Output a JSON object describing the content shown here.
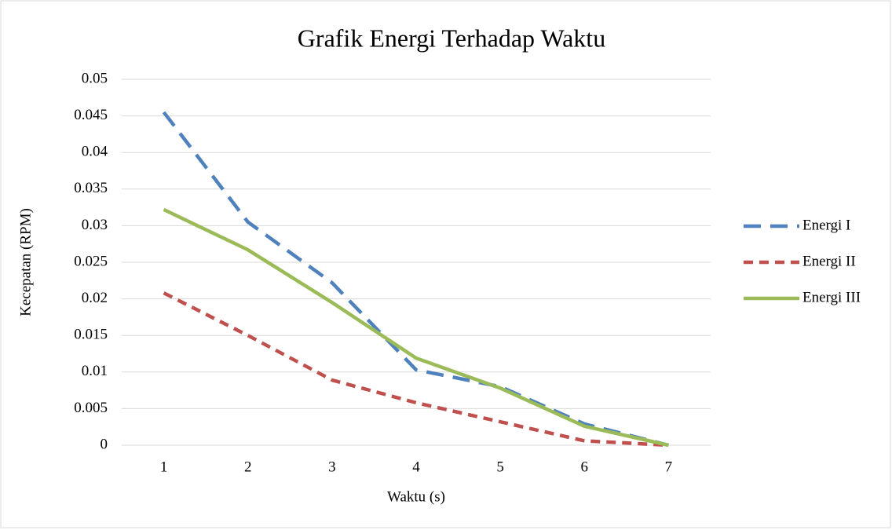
{
  "chart_data": {
    "type": "line",
    "title": "Grafik Energi Terhadap Waktu",
    "x_label": "Waktu (s)",
    "y_label": "Kecepatan (RPM)",
    "categories": [
      "1",
      "2",
      "3",
      "4",
      "5",
      "6",
      "7"
    ],
    "series": [
      {
        "name": "Energi I",
        "color": "#4f81bd",
        "values": [
          0.0455,
          0.0305,
          0.0222,
          0.0103,
          0.008,
          0.0029,
          0
        ]
      },
      {
        "name": "Energi II",
        "color": "#c0504d",
        "values": [
          0.0208,
          0.015,
          0.0089,
          0.0058,
          0.0032,
          0.0006,
          0
        ]
      },
      {
        "name": "Energi III",
        "color": "#9bbb59",
        "values": [
          0.0322,
          0.0267,
          0.0195,
          0.0119,
          0.0078,
          0.0026,
          0
        ]
      }
    ],
    "ylim": [
      0,
      0.05
    ],
    "yticks": [
      0,
      0.005,
      0.01,
      0.015,
      0.02,
      0.025,
      0.03,
      0.035,
      0.04,
      0.045,
      0.05
    ],
    "grid": true,
    "legend": "right"
  }
}
